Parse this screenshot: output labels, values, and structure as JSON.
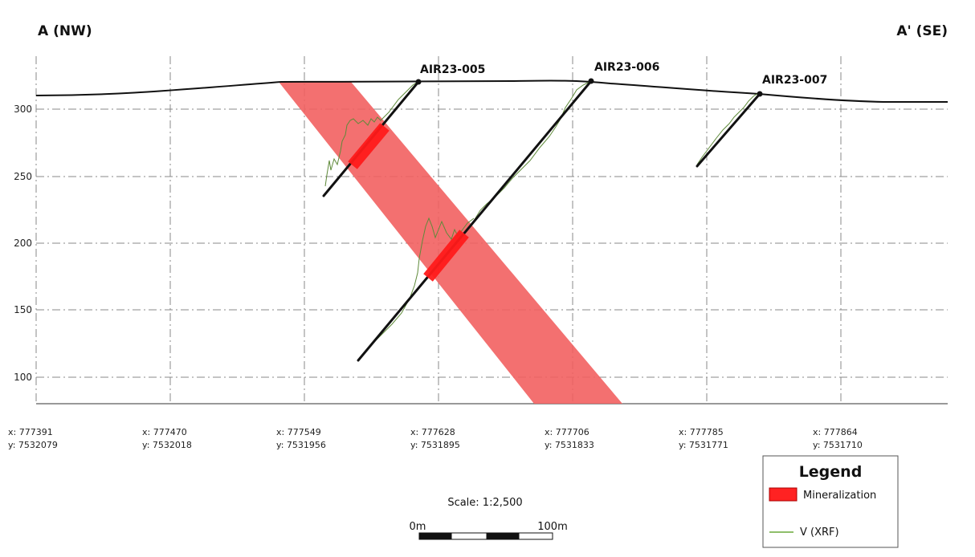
{
  "section": {
    "left_label": "A (NW)",
    "right_label": "A' (SE)"
  },
  "elevation_axis": {
    "ticks": [
      {
        "value": 300,
        "label": "300"
      },
      {
        "value": 250,
        "label": "250"
      },
      {
        "value": 200,
        "label": "200"
      },
      {
        "value": 150,
        "label": "150"
      },
      {
        "value": 100,
        "label": "100"
      }
    ]
  },
  "coordinates": [
    {
      "x": "x: 777391",
      "y": "y: 7532079"
    },
    {
      "x": "x: 777470",
      "y": "y: 7532018"
    },
    {
      "x": "x: 777549",
      "y": "y: 7531956"
    },
    {
      "x": "x: 777628",
      "y": "y: 7531895"
    },
    {
      "x": "x: 777706",
      "y": "y: 7531833"
    },
    {
      "x": "x: 777785",
      "y": "y: 7531771"
    },
    {
      "x": "x: 777864",
      "y": "y: 7531710"
    }
  ],
  "drillholes": [
    {
      "name": "AIR23-005"
    },
    {
      "name": "AIR23-006"
    },
    {
      "name": "AIR23-007"
    }
  ],
  "scale": {
    "label": "Scale: 1:2,500",
    "start": "0m",
    "end": "100m"
  },
  "legend": {
    "title": "Legend",
    "items": [
      {
        "label": "Mineralization",
        "color": "#ff2222"
      },
      {
        "label": "V (XRF)",
        "color": "#8fbf6a"
      }
    ]
  },
  "colors": {
    "mineralized_zone": "#f26060",
    "intercept": "#ff1a1a",
    "drillhole": "#111111",
    "xrf_trace": "#5f8a3a"
  }
}
